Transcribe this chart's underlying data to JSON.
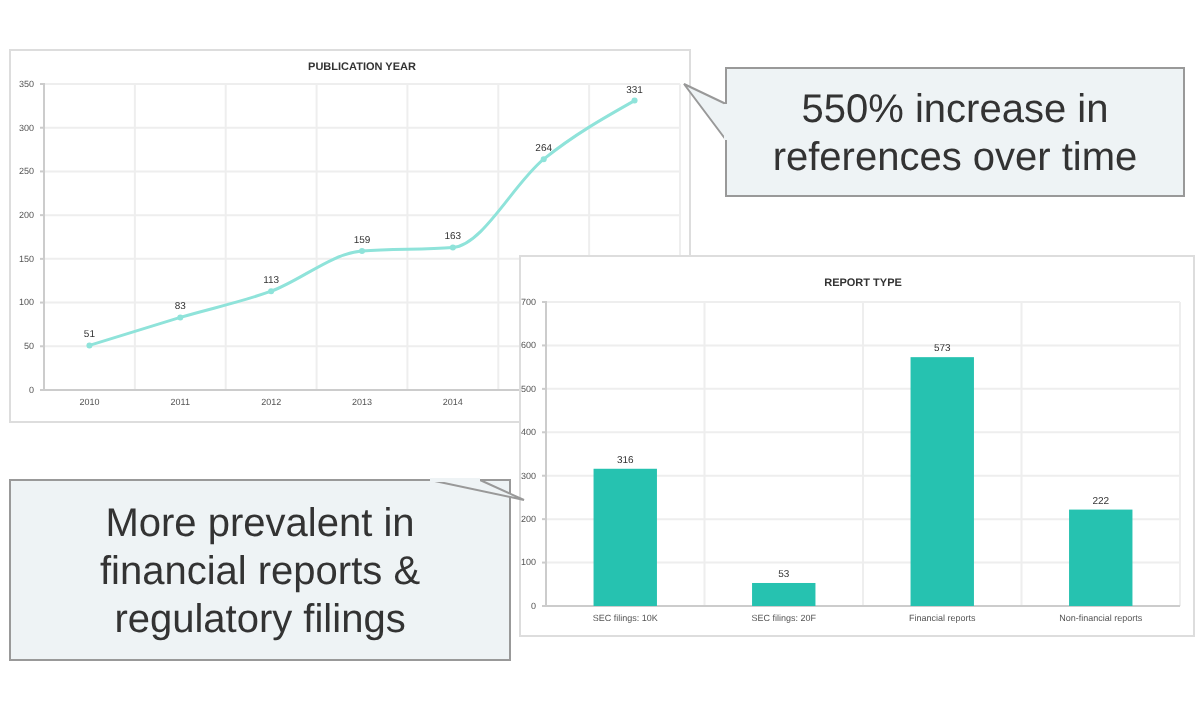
{
  "chart_data": [
    {
      "type": "line",
      "title": "PUBLICATION YEAR",
      "categories": [
        "2010",
        "2011",
        "2012",
        "2013",
        "2014",
        null,
        null
      ],
      "series": [
        {
          "color": "#8fe3da",
          "values": [
            51,
            83,
            113,
            159,
            163,
            264,
            331
          ]
        }
      ],
      "ylim": [
        0,
        350
      ],
      "yticks": [
        0,
        50,
        100,
        150,
        200,
        250,
        300,
        350
      ],
      "grid": true,
      "data_labels": true,
      "marker": "circle",
      "annotations": [
        "550% increase in references over time"
      ]
    },
    {
      "type": "bar",
      "title": "REPORT TYPE",
      "categories": [
        "SEC filings: 10K",
        "SEC filings: 20F",
        "Financial reports",
        "Non-financial reports"
      ],
      "series": [
        {
          "color": "#26c2b0",
          "values": [
            316,
            53,
            573,
            222
          ]
        }
      ],
      "ylim": [
        0,
        700
      ],
      "yticks": [
        0,
        100,
        200,
        300,
        400,
        500,
        600,
        700
      ],
      "grid": true,
      "data_labels": true,
      "annotations": [
        "More prevalent in financial reports & regulatory filings"
      ]
    }
  ]
}
